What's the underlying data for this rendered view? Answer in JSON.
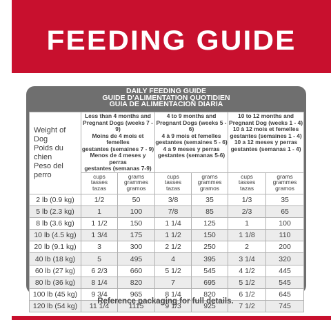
{
  "banner": {
    "title": "FEEDING GUIDE"
  },
  "heading": {
    "line1": "DAILY FEEDING GUIDE",
    "line2": "GUIDE D'ALIMENTATION QUOTIDIEN",
    "line3": "GUIA DE ALIMENTACION DIARIA"
  },
  "weight_header": [
    "Weight of Dog",
    "Poids du chien",
    "Peso del perro"
  ],
  "ranges": [
    [
      "Less than 4 months and",
      "Pregnant Dogs (weeks 7 - 9)",
      "Moins de 4 mois et femelles",
      "gestantes (semaines 7 - 9)",
      "Menos de 4 meses y perras",
      "gestantes (semanas 7-9)"
    ],
    [
      "4 to 9 months and",
      "Pregnant Dogs (weeks 5 - 6)",
      "4 à 9 mois et femelles",
      "gestantes (semaines 5 - 6)",
      "4 a 9 meses y perras",
      "gestantes (semanas 5-6)"
    ],
    [
      "10 to 12 months and",
      "Pregnant Dog (weeks 1 - 4)",
      "10 à 12 mois et femelles",
      "gestantes (semaines 1 - 4)",
      "10 a 12 meses y perras",
      "gestantes (semanas 1 - 4)"
    ]
  ],
  "units": {
    "cups": [
      "cups",
      "tasses",
      "tazas"
    ],
    "grams": [
      "grams",
      "grammes",
      "gramos"
    ]
  },
  "rows": [
    [
      "2 lb (0.9 kg)",
      "1/2",
      "50",
      "3/8",
      "35",
      "1/3",
      "35"
    ],
    [
      "5 lb (2.3 kg)",
      "1",
      "100",
      "7/8",
      "85",
      "2/3",
      "65"
    ],
    [
      "8 lb (3.6 kg)",
      "1 1/2",
      "150",
      "1 1/4",
      "125",
      "1",
      "100"
    ],
    [
      "10 lb (4.5 kg)",
      "1 3/4",
      "175",
      "1 1/2",
      "150",
      "1 1/8",
      "110"
    ],
    [
      "20 lb (9.1 kg)",
      "3",
      "300",
      "2 1/2",
      "250",
      "2",
      "200"
    ],
    [
      "40 lb (18 kg)",
      "5",
      "495",
      "4",
      "395",
      "3 1/4",
      "320"
    ],
    [
      "60 lb (27 kg)",
      "6 2/3",
      "660",
      "5 1/2",
      "545",
      "4 1/2",
      "445"
    ],
    [
      "80 lb (36 kg)",
      "8 1/4",
      "820",
      "7",
      "695",
      "5 1/2",
      "545"
    ],
    [
      "100 lb (45 kg)",
      "9 3/4",
      "965",
      "8 1/4",
      "820",
      "6 1/2",
      "645"
    ],
    [
      "120 lb (54 kg)",
      "11 1/4",
      "1115",
      "9 1/3",
      "925",
      "7 1/2",
      "745"
    ]
  ],
  "footer": {
    "note": "Reference packaging for full details."
  },
  "colors": {
    "brand_red": "#c8102e",
    "table_gray": "#6f6f6f",
    "row_alt": "#ececec"
  }
}
